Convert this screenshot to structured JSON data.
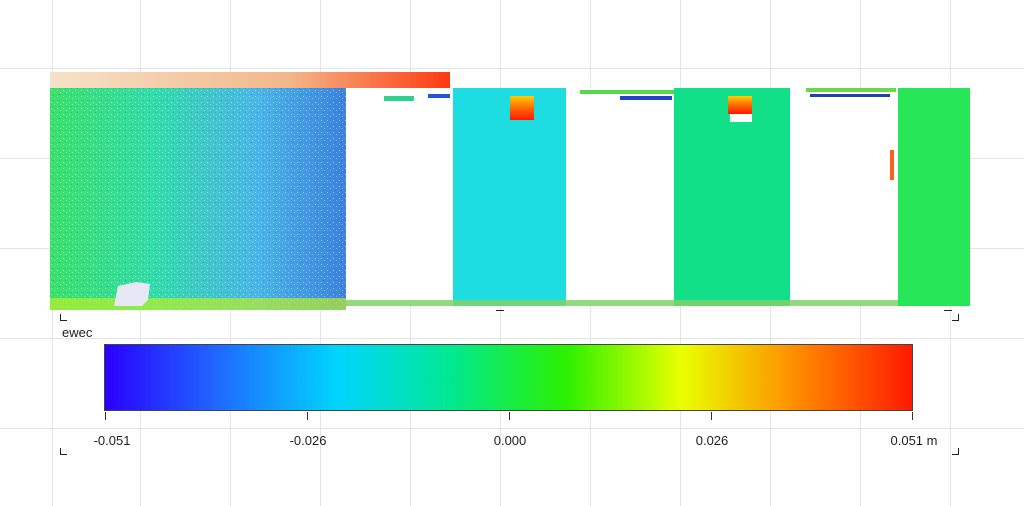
{
  "colormap": {
    "label": "ewec",
    "ticks": [
      "-0.051",
      "-0.026",
      "0.000",
      "0.026",
      "0.051 m"
    ],
    "gradient_colors": [
      "#2a00ff",
      "#1f6bff",
      "#00d4ff",
      "#00e890",
      "#2cf000",
      "#eaff00",
      "#ff8c00",
      "#ff1a00"
    ]
  },
  "scene": {
    "main_wall_gradient": [
      "#39d85a",
      "#38e0a0",
      "#4fb8e8",
      "#2f78d8"
    ],
    "panel_colors": {
      "left_wall": "#44d977",
      "panel_cyan": "#1ddce0",
      "panel_green": "#12e088",
      "panel_right": "#27e657",
      "top_strip": "#f3c7a0",
      "hot_spot": "#ff3300",
      "window": "#ffffff"
    }
  }
}
